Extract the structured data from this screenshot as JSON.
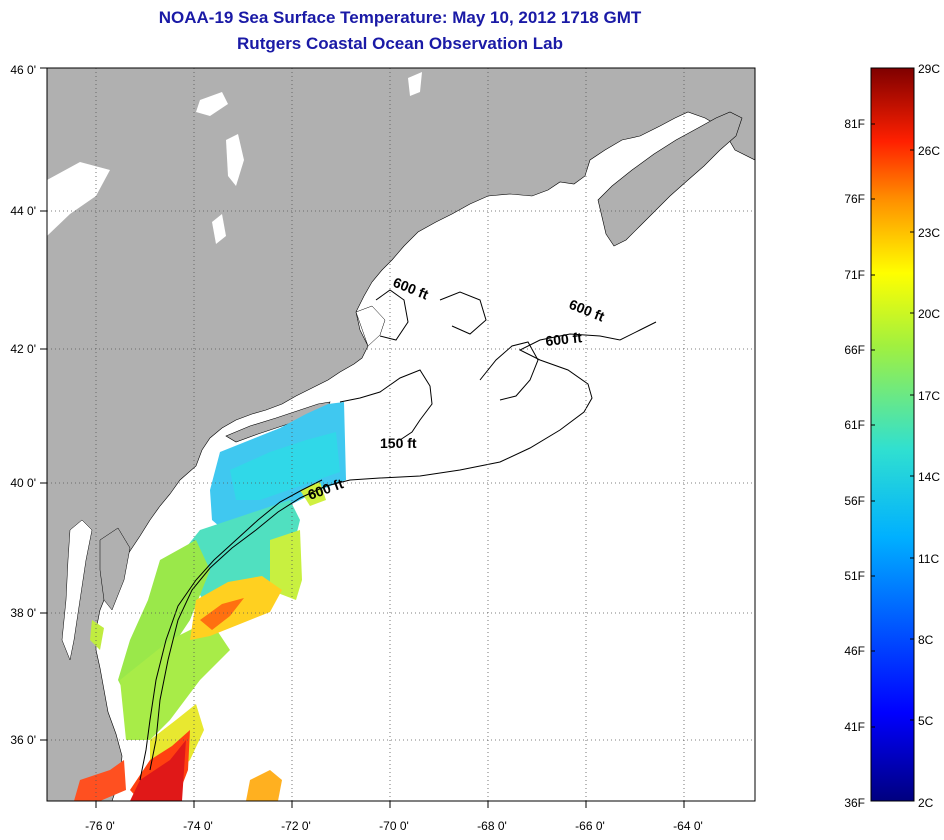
{
  "title_line1": "NOAA-19 Sea Surface Temperature:  May 10, 2012 1718 GMT",
  "title_line2": "Rutgers Coastal Ocean Observation Lab",
  "map": {
    "lon_labels": [
      "-76 0'",
      "-74 0'",
      "-72 0'",
      "-70 0'",
      "-68 0'",
      "-66 0'",
      "-64 0'"
    ],
    "lat_labels": [
      "46 0'",
      "44 0'",
      "42 0'",
      "40 0'",
      "38 0'",
      "36 0'"
    ],
    "contour_labels": [
      "600 ft",
      "600 ft",
      "600 ft",
      "150 ft",
      "600 ft"
    ],
    "land_color": "#b0b0b0",
    "water_color": "#ffffff"
  },
  "colorbar": {
    "celsius_labels": [
      "29C",
      "26C",
      "23C",
      "20C",
      "17C",
      "14C",
      "11C",
      "8C",
      "5C",
      "2C"
    ],
    "fahrenheit_labels": [
      "81F",
      "76F",
      "71F",
      "66F",
      "61F",
      "56F",
      "51F",
      "46F",
      "41F",
      "36F"
    ]
  }
}
